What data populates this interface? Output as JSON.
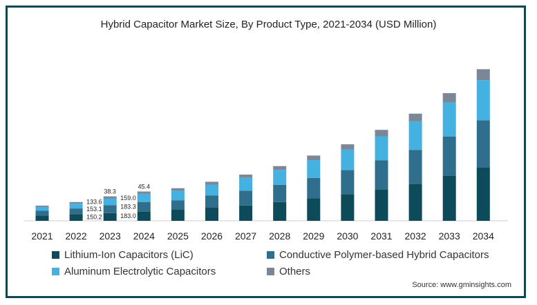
{
  "chart_data": {
    "type": "bar",
    "stacked": true,
    "title": "Hybrid Capacitor Market Size, By Product Type, 2021-2034 (USD Million)",
    "xlabel": "",
    "ylabel": "",
    "categories": [
      "2021",
      "2022",
      "2023",
      "2024",
      "2025",
      "2026",
      "2027",
      "2028",
      "2029",
      "2030",
      "2031",
      "2032",
      "2033",
      "2034"
    ],
    "series": [
      {
        "name": "Lithium-Ion Capacitors (LiC)",
        "color": "#0d4a5a",
        "values": [
          105,
          130,
          150.2,
          183.0,
          215,
          255,
          300,
          365,
          440,
          520,
          610,
          720,
          875,
          1040
        ]
      },
      {
        "name": "Conductive Polymer-based Hybrid Capacitors",
        "color": "#2f6e8c",
        "values": [
          90,
          110,
          153.1,
          183.3,
          185,
          235,
          285,
          335,
          395,
          470,
          565,
          660,
          765,
          915
        ]
      },
      {
        "name": "Aluminum Electrolytic Capacitors",
        "color": "#45b1e0",
        "values": [
          75,
          95,
          133.6,
          159.0,
          185,
          215,
          250,
          290,
          345,
          395,
          470,
          555,
          665,
          780
        ]
      },
      {
        "name": "Others",
        "color": "#7b8797",
        "values": [
          25,
          30,
          38.3,
          45.4,
          50,
          55,
          65,
          75,
          90,
          105,
          125,
          150,
          180,
          215
        ]
      }
    ],
    "data_labels": [
      {
        "year": "2023",
        "labels": [
          "150.2",
          "153.1",
          "133.6",
          "38.3"
        ]
      },
      {
        "year": "2024",
        "labels": [
          "183.0",
          "183.3",
          "159.0",
          "45.4"
        ]
      }
    ],
    "ylim": [
      0,
      3250
    ],
    "grid": false,
    "legend_position": "bottom",
    "source": "Source: www.gminsights.com"
  }
}
